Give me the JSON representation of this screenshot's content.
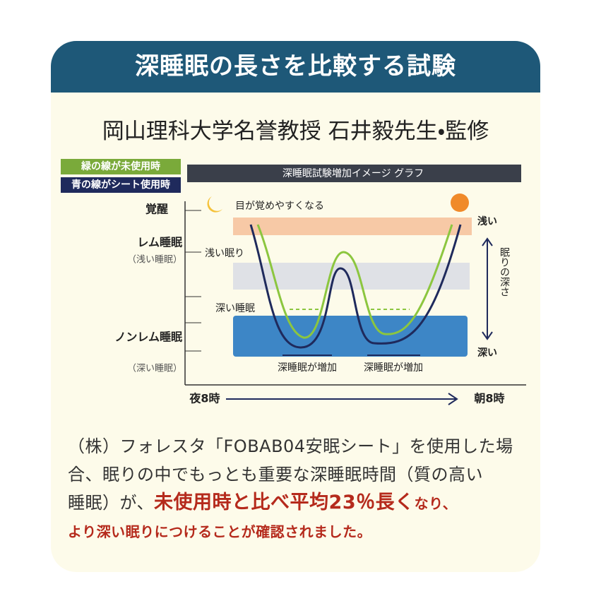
{
  "header": {
    "title": "深睡眠の長さを比較する試験"
  },
  "subtitle": "岡山理科大学名誉教授 石井毅先生・監修",
  "legend": [
    "緑の線が未使用時",
    "青の線がシート使用時"
  ],
  "graph": {
    "title": "深睡眠試験増加イメージ グラフ",
    "y_labels": [
      "覚醒",
      "レム睡眠",
      "（浅い睡眠）",
      "ノンレム睡眠",
      "（深い睡眠）"
    ],
    "annotations": [
      "目が覚めやすくなる",
      "浅い眠り",
      "深い睡眠",
      "深睡眠が増加",
      "深睡眠が増加"
    ],
    "x_labels": [
      "夜8時",
      "朝8時"
    ],
    "depth_axis": [
      "浅い",
      "眠りの深さ",
      "深い"
    ]
  },
  "body": {
    "line1": "（株）フォレスタ「FOBAB04安眠シート」を使用した場",
    "line2": "合、眠りの中でもっとも重要な深睡眠時間（質の高い",
    "line3": {
      "text": "睡眠）が、",
      "highlight": "未使用時と比べ平均23％長く",
      "tail": "なり、"
    },
    "line4": "より深い眠りにつけることが確認されました。"
  }
}
